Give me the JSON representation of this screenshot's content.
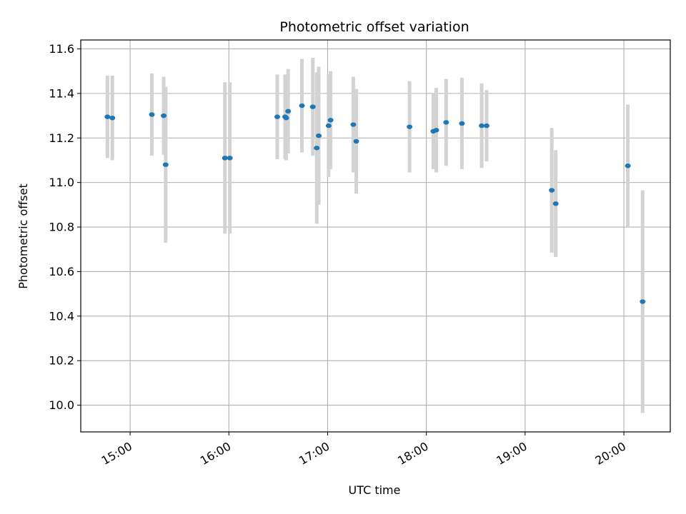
{
  "chart_data": {
    "type": "scatter",
    "title": "Photometric offset variation",
    "xlabel": "UTC time",
    "ylabel": "Photometric offset",
    "x_unit": "hours UTC",
    "xlim": [
      14.5,
      20.47
    ],
    "ylim": [
      9.88,
      11.64
    ],
    "grid": true,
    "x_ticks": [
      {
        "value": 15,
        "label": "15:00"
      },
      {
        "value": 16,
        "label": "16:00"
      },
      {
        "value": 17,
        "label": "17:00"
      },
      {
        "value": 18,
        "label": "18:00"
      },
      {
        "value": 19,
        "label": "19:00"
      },
      {
        "value": 20,
        "label": "20:00"
      }
    ],
    "y_ticks": [
      {
        "value": 10.0,
        "label": "10.0"
      },
      {
        "value": 10.2,
        "label": "10.2"
      },
      {
        "value": 10.4,
        "label": "10.4"
      },
      {
        "value": 10.6,
        "label": "10.6"
      },
      {
        "value": 10.8,
        "label": "10.8"
      },
      {
        "value": 11.0,
        "label": "11.0"
      },
      {
        "value": 11.2,
        "label": "11.2"
      },
      {
        "value": 11.4,
        "label": "11.4"
      },
      {
        "value": 11.6,
        "label": "11.6"
      }
    ],
    "colors": {
      "point": "#1f77b4",
      "error": "#d3d3d3",
      "grid": "#b0b0b0"
    },
    "points": [
      {
        "x": 14.77,
        "y": 11.295,
        "err": 0.185
      },
      {
        "x": 14.82,
        "y": 11.29,
        "err": 0.19
      },
      {
        "x": 15.22,
        "y": 11.305,
        "err": 0.185
      },
      {
        "x": 15.34,
        "y": 11.3,
        "err": 0.175
      },
      {
        "x": 15.36,
        "y": 11.08,
        "err": 0.35
      },
      {
        "x": 15.96,
        "y": 11.11,
        "err": 0.34
      },
      {
        "x": 16.01,
        "y": 11.11,
        "err": 0.34
      },
      {
        "x": 16.49,
        "y": 11.295,
        "err": 0.19
      },
      {
        "x": 16.57,
        "y": 11.295,
        "err": 0.19
      },
      {
        "x": 16.58,
        "y": 11.29,
        "err": 0.19
      },
      {
        "x": 16.6,
        "y": 11.32,
        "err": 0.19
      },
      {
        "x": 16.74,
        "y": 11.345,
        "err": 0.21
      },
      {
        "x": 16.85,
        "y": 11.34,
        "err": 0.22
      },
      {
        "x": 16.89,
        "y": 11.155,
        "err": 0.34
      },
      {
        "x": 16.91,
        "y": 11.21,
        "err": 0.31
      },
      {
        "x": 17.01,
        "y": 11.255,
        "err": 0.23
      },
      {
        "x": 17.03,
        "y": 11.28,
        "err": 0.22
      },
      {
        "x": 17.26,
        "y": 11.26,
        "err": 0.215
      },
      {
        "x": 17.29,
        "y": 11.185,
        "err": 0.235
      },
      {
        "x": 17.83,
        "y": 11.25,
        "err": 0.205
      },
      {
        "x": 18.07,
        "y": 11.23,
        "err": 0.17
      },
      {
        "x": 18.1,
        "y": 11.235,
        "err": 0.19
      },
      {
        "x": 18.2,
        "y": 11.27,
        "err": 0.195
      },
      {
        "x": 18.36,
        "y": 11.265,
        "err": 0.205
      },
      {
        "x": 18.56,
        "y": 11.255,
        "err": 0.19
      },
      {
        "x": 18.61,
        "y": 11.255,
        "err": 0.16
      },
      {
        "x": 19.27,
        "y": 10.965,
        "err": 0.28
      },
      {
        "x": 19.31,
        "y": 10.905,
        "err": 0.24
      },
      {
        "x": 20.04,
        "y": 11.075,
        "err": 0.275
      },
      {
        "x": 20.19,
        "y": 10.465,
        "err": 0.5
      }
    ]
  }
}
